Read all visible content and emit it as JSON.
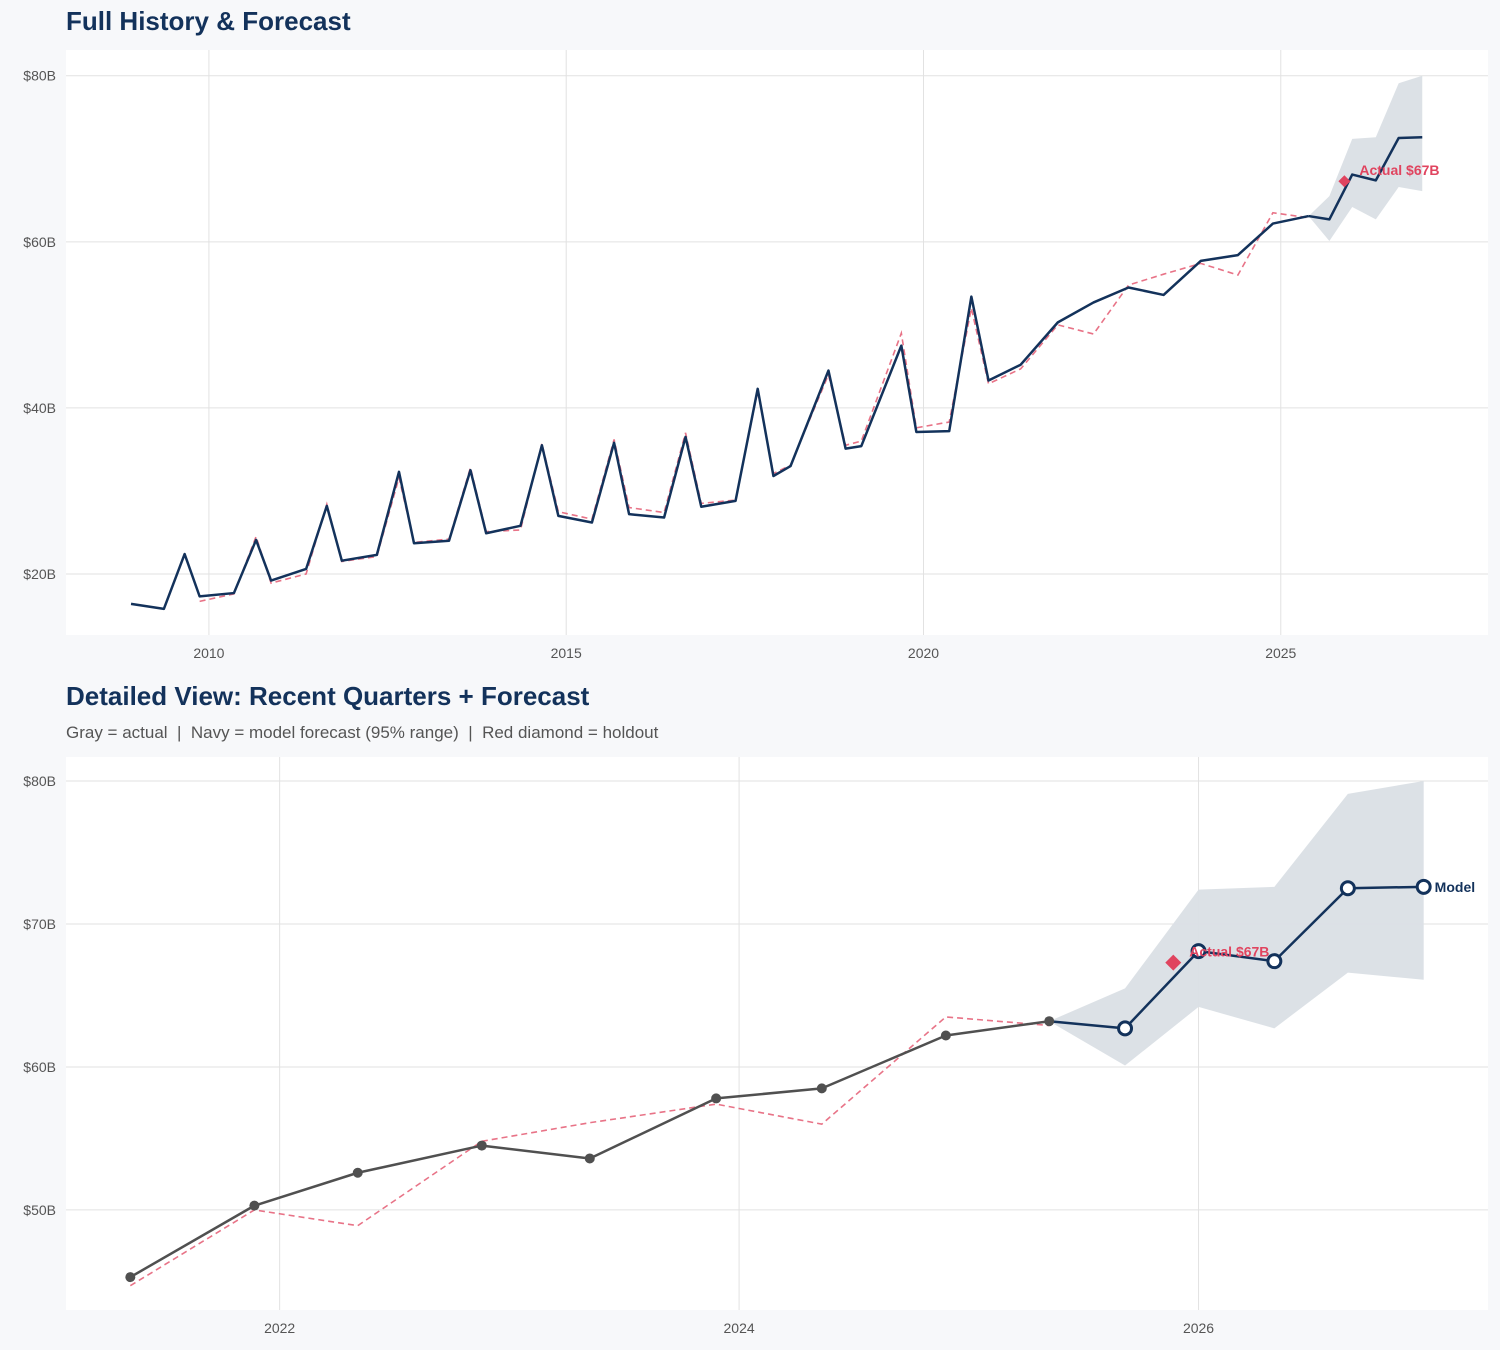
{
  "colors": {
    "navy": "#13325b",
    "gray": "#505050",
    "red": "#e0445f",
    "band": "#dadfe5",
    "grid": "#e2e2e2"
  },
  "chart_data": [
    {
      "type": "line",
      "title": "Full History & Forecast",
      "xlim": [
        2008.0,
        2027.9
      ],
      "ylim": [
        12.65,
        83.1
      ],
      "x_ticks": [
        2010,
        2015,
        2020,
        2025
      ],
      "x_tick_labels": [
        "2010",
        "2015",
        "2020",
        "2025"
      ],
      "y_ticks": [
        20,
        40,
        60,
        80
      ],
      "y_tick_labels": [
        "$20B",
        "$40B",
        "$60B",
        "$80B"
      ],
      "grid": true,
      "history": {
        "name": "Actual",
        "x": [
          2008.91,
          2009.37,
          2009.66,
          2009.87,
          2010.35,
          2010.66,
          2010.87,
          2011.36,
          2011.65,
          2011.86,
          2012.35,
          2012.66,
          2012.87,
          2013.36,
          2013.66,
          2013.88,
          2014.36,
          2014.66,
          2014.89,
          2015.36,
          2015.67,
          2015.88,
          2016.37,
          2016.67,
          2016.89,
          2017.37,
          2017.68,
          2017.9,
          2018.14,
          2018.67,
          2018.91,
          2019.13,
          2019.69,
          2019.9,
          2020.36,
          2020.67,
          2020.91,
          2021.36,
          2021.88,
          2022.38,
          2022.87,
          2023.36,
          2023.88,
          2024.4,
          2024.89,
          2025.39
        ],
        "values": [
          16.4,
          15.8,
          22.4,
          17.3,
          17.7,
          24.1,
          19.2,
          20.6,
          28.2,
          21.6,
          22.3,
          32.3,
          23.7,
          24.0,
          32.5,
          24.9,
          25.8,
          35.5,
          27.0,
          26.2,
          35.8,
          27.2,
          26.8,
          36.5,
          28.1,
          28.8,
          42.3,
          31.8,
          33.0,
          44.5,
          35.1,
          35.4,
          47.5,
          37.1,
          37.2,
          53.4,
          43.3,
          45.2,
          50.3,
          52.7,
          54.5,
          53.6,
          57.7,
          58.4,
          62.2,
          63.1
        ]
      },
      "fitted": {
        "name": "Fitted",
        "x": [
          2009.87,
          2010.35,
          2010.66,
          2010.87,
          2011.36,
          2011.65,
          2011.86,
          2012.35,
          2012.66,
          2012.87,
          2013.36,
          2013.66,
          2013.88,
          2014.36,
          2014.66,
          2014.89,
          2015.36,
          2015.67,
          2015.88,
          2016.37,
          2016.67,
          2016.89,
          2017.37,
          2017.68,
          2017.9,
          2018.14,
          2018.67,
          2018.91,
          2019.13,
          2019.69,
          2019.9,
          2020.36,
          2020.67,
          2020.91,
          2021.36,
          2021.88,
          2022.38,
          2022.87,
          2023.36,
          2023.88,
          2024.4,
          2024.89,
          2025.39
        ],
        "values": [
          16.7,
          17.6,
          24.5,
          18.9,
          20.0,
          28.4,
          21.5,
          22.1,
          31.6,
          23.8,
          24.2,
          32.8,
          25.1,
          25.3,
          35.7,
          27.5,
          26.6,
          36.2,
          28.0,
          27.4,
          37.0,
          28.5,
          28.9,
          42.0,
          32.1,
          33.1,
          44.0,
          35.5,
          36.0,
          49.0,
          37.6,
          38.3,
          52.0,
          42.9,
          44.7,
          50.0,
          48.9,
          54.8,
          56.1,
          57.4,
          56.0,
          63.5,
          62.9
        ]
      },
      "forecast": {
        "name": "Model",
        "x": [
          2025.39,
          2025.68,
          2026.0,
          2026.33,
          2026.65,
          2026.98
        ],
        "values": [
          63.1,
          62.7,
          68.1,
          67.4,
          72.5,
          72.6
        ],
        "lower": [
          63.1,
          60.1,
          64.2,
          62.7,
          66.6,
          66.1
        ],
        "upper": [
          63.1,
          65.5,
          72.4,
          72.6,
          79.1,
          80.0
        ]
      },
      "holdout": {
        "x": 2025.89,
        "value": 67.3,
        "label": "Actual $67B"
      }
    },
    {
      "type": "line",
      "title": "Detailed View: Recent Quarters + Forecast",
      "subtitle": "Gray = actual  |  Navy = model forecast (95% range)  |  Red diamond = holdout",
      "xlim": [
        2021.07,
        2027.26
      ],
      "ylim": [
        43.0,
        81.68
      ],
      "x_ticks": [
        2022,
        2024,
        2026
      ],
      "x_tick_labels": [
        "2022",
        "2024",
        "2026"
      ],
      "y_ticks": [
        50,
        60,
        70,
        80
      ],
      "y_tick_labels": [
        "$50B",
        "$60B",
        "$70B",
        "$80B"
      ],
      "grid": true,
      "history": {
        "name": "Actual",
        "x": [
          2021.35,
          2021.89,
          2022.34,
          2022.88,
          2023.35,
          2023.9,
          2024.36,
          2024.9,
          2025.35
        ],
        "values": [
          45.3,
          50.3,
          52.6,
          54.5,
          53.6,
          57.8,
          58.5,
          62.2,
          63.2
        ]
      },
      "fitted": {
        "name": "Fitted",
        "x": [
          2021.35,
          2021.89,
          2022.34,
          2022.88,
          2023.35,
          2023.9,
          2024.36,
          2024.9,
          2025.35
        ],
        "values": [
          44.7,
          50.0,
          48.9,
          54.8,
          56.1,
          57.4,
          56.0,
          63.5,
          62.9
        ]
      },
      "forecast": {
        "name": "Model",
        "label": "Model",
        "x": [
          2025.35,
          2025.68,
          2026.0,
          2026.33,
          2026.65,
          2026.98
        ],
        "values": [
          63.2,
          62.7,
          68.1,
          67.4,
          72.5,
          72.6
        ],
        "lower": [
          63.2,
          60.1,
          64.2,
          62.7,
          66.6,
          66.1
        ],
        "upper": [
          63.2,
          65.5,
          72.4,
          72.6,
          79.1,
          80.0
        ]
      },
      "holdout": {
        "x": 2025.89,
        "value": 67.3,
        "label": "Actual $67B"
      }
    }
  ]
}
